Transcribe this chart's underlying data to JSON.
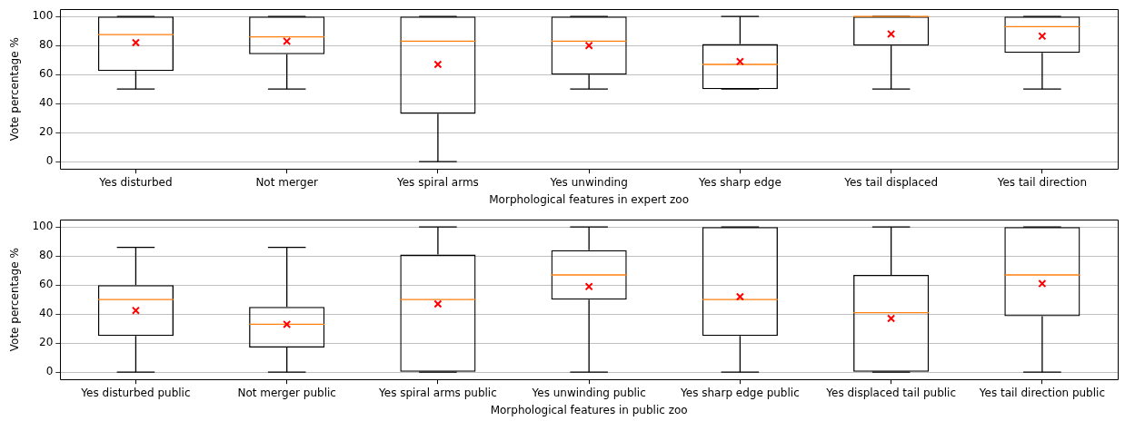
{
  "chart_data": [
    {
      "type": "box",
      "xlabel": "Morphological features in expert zoo",
      "ylabel": "Vote percentage %",
      "categories": [
        "Yes disturbed",
        "Not merger",
        "Yes spiral arms",
        "Yes unwinding",
        "Yes sharp edge",
        "Yes tail displaced",
        "Yes tail direction"
      ],
      "series": [
        {
          "color": "#000000",
          "boxes": [
            {
              "low": 50,
              "q1": 62.5,
              "median": 87.5,
              "q3": 100,
              "high": 100,
              "mean": 82
            },
            {
              "low": 50,
              "q1": 74,
              "median": 86,
              "q3": 100,
              "high": 100,
              "mean": 83
            },
            {
              "low": 0,
              "q1": 33,
              "median": 83,
              "q3": 100,
              "high": 100,
              "mean": 67
            },
            {
              "low": 50,
              "q1": 60,
              "median": 83,
              "q3": 100,
              "high": 100,
              "mean": 80
            },
            {
              "low": 50,
              "q1": 50,
              "median": 67,
              "q3": 81,
              "high": 100,
              "mean": 69
            },
            {
              "low": 50,
              "q1": 80,
              "median": 100,
              "q3": 100,
              "high": 100,
              "mean": 88
            },
            {
              "low": 50,
              "q1": 75,
              "median": 93,
              "q3": 100,
              "high": 100,
              "mean": 86.5
            }
          ]
        }
      ],
      "ylim": [
        -5,
        105
      ],
      "yticks": [
        0,
        20,
        40,
        60,
        80,
        100
      ],
      "grid": "y",
      "marker": "cross"
    },
    {
      "type": "box",
      "xlabel": "Morphological features in public zoo",
      "ylabel": "Vote percentage %",
      "categories": [
        "Yes disturbed public",
        "Not merger public",
        "Yes spiral arms public",
        "Yes unwinding public",
        "Yes sharp edge public",
        "Yes displaced tail public",
        "Yes tail direction public"
      ],
      "series": [
        {
          "color": "#000000",
          "boxes": [
            {
              "low": 0,
              "q1": 25,
              "median": 50,
              "q3": 60,
              "high": 86,
              "mean": 42.5
            },
            {
              "low": 0,
              "q1": 17,
              "median": 33,
              "q3": 45,
              "high": 86,
              "mean": 33
            },
            {
              "low": 0,
              "q1": 0,
              "median": 50,
              "q3": 81,
              "high": 100,
              "mean": 47
            },
            {
              "low": 0,
              "q1": 50,
              "median": 67,
              "q3": 84,
              "high": 100,
              "mean": 59
            },
            {
              "low": 0,
              "q1": 25,
              "median": 50,
              "q3": 100,
              "high": 100,
              "mean": 52
            },
            {
              "low": 0,
              "q1": 0,
              "median": 41,
              "q3": 67,
              "high": 100,
              "mean": 37
            },
            {
              "low": 0,
              "q1": 38.5,
              "median": 67,
              "q3": 100,
              "high": 100,
              "mean": 61
            }
          ]
        }
      ],
      "ylim": [
        -5,
        105
      ],
      "yticks": [
        0,
        20,
        40,
        60,
        80,
        100
      ],
      "grid": "y",
      "marker": "cross"
    }
  ]
}
